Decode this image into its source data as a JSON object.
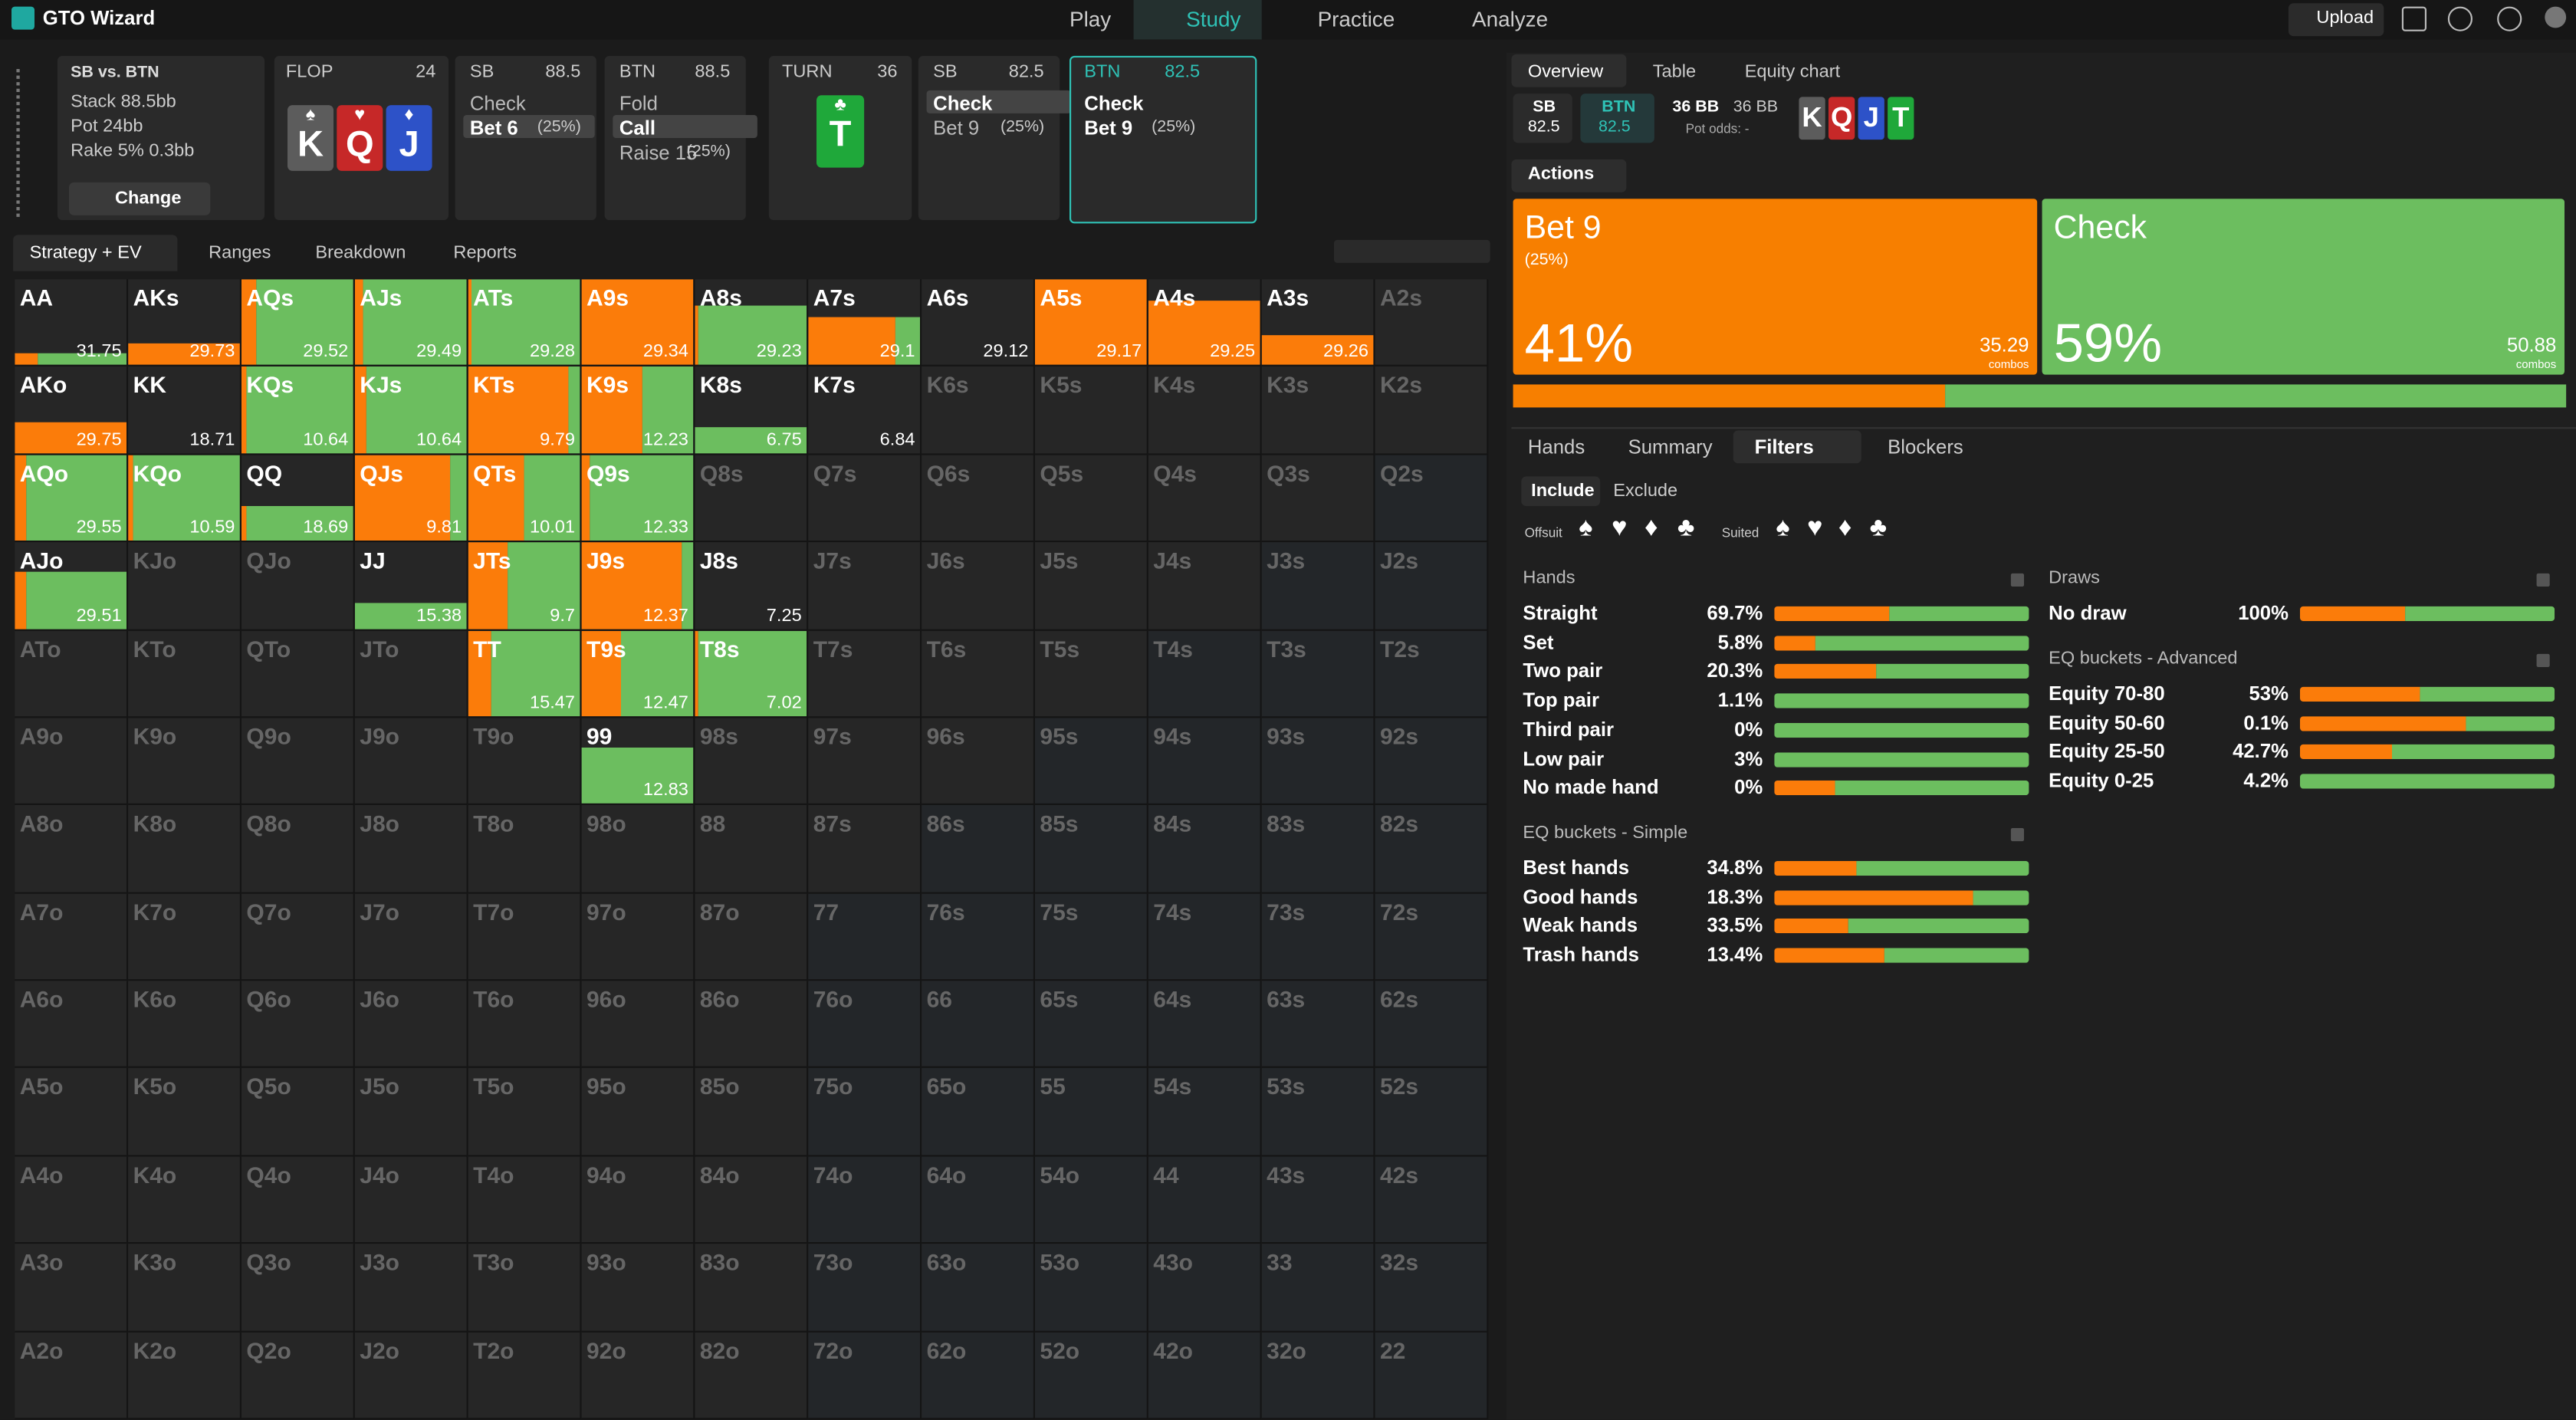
{
  "topbar": {
    "brand": "GTO Wizard",
    "nav": [
      "Play",
      "Study",
      "Practice",
      "Analyze"
    ],
    "upload": "Upload"
  },
  "info": {
    "title": "SB vs. BTN",
    "lines": [
      "Stack 88.5bb",
      "Pot 24bb",
      "Rake 5% 0.3bb"
    ],
    "button": "Change"
  },
  "flop": {
    "label": "FLOP",
    "pot": "24",
    "cards": [
      {
        "rank": "K",
        "suit": "♠"
      },
      {
        "rank": "Q",
        "suit": "♥"
      },
      {
        "rank": "J",
        "suit": "♦"
      }
    ]
  },
  "turn": {
    "label": "TURN",
    "pot": "36",
    "card": {
      "rank": "T",
      "suit": "♣"
    }
  },
  "actions": [
    {
      "player": "SB",
      "stack": "88.5",
      "options": [
        "Check",
        "Bet 6"
      ],
      "sizes": [
        "",
        "(25%)"
      ]
    },
    {
      "player": "BTN",
      "stack": "88.5",
      "options": [
        "Fold",
        "Call",
        "Raise 15"
      ],
      "sizes": [
        "",
        "",
        "(25%)"
      ]
    },
    {
      "player": "SB",
      "stack": "82.5",
      "options": [
        "Check",
        "Bet 9"
      ],
      "sizes": [
        "",
        "(25%)"
      ]
    },
    {
      "player": "BTN",
      "stack": "82.5",
      "options": [
        "Check",
        "Bet 9"
      ],
      "sizes": [
        "",
        "(25%)"
      ]
    }
  ],
  "grid_tabs": [
    "Strategy + EV",
    "Ranges",
    "Breakdown",
    "Reports"
  ],
  "grid": {
    "rows": [
      [
        "AA",
        "AKs",
        "AQs",
        "AJs",
        "ATs",
        "A9s",
        "A8s",
        "A7s",
        "A6s",
        "A5s",
        "A4s",
        "A3s",
        "A2s"
      ],
      [
        "AKo",
        "KK",
        "KQs",
        "KJs",
        "KTs",
        "K9s",
        "K8s",
        "K7s",
        "K6s",
        "K5s",
        "K4s",
        "K3s",
        "K2s"
      ],
      [
        "AQo",
        "KQo",
        "QQ",
        "QJs",
        "QTs",
        "Q9s",
        "Q8s",
        "Q7s",
        "Q6s",
        "Q5s",
        "Q4s",
        "Q3s",
        "Q2s"
      ],
      [
        "AJo",
        "KJo",
        "QJo",
        "JJ",
        "JTs",
        "J9s",
        "J8s",
        "J7s",
        "J6s",
        "J5s",
        "J4s",
        "J3s",
        "J2s"
      ],
      [
        "ATo",
        "KTo",
        "QTo",
        "JTo",
        "TT",
        "T9s",
        "T8s",
        "T7s",
        "T6s",
        "T5s",
        "T4s",
        "T3s",
        "T2s"
      ],
      [
        "A9o",
        "K9o",
        "Q9o",
        "J9o",
        "T9o",
        "99",
        "98s",
        "97s",
        "96s",
        "95s",
        "94s",
        "93s",
        "92s"
      ],
      [
        "A8o",
        "K8o",
        "Q8o",
        "J8o",
        "T8o",
        "98o",
        "88",
        "87s",
        "86s",
        "85s",
        "84s",
        "83s",
        "82s"
      ],
      [
        "A7o",
        "K7o",
        "Q7o",
        "J7o",
        "T7o",
        "97o",
        "87o",
        "77",
        "76s",
        "75s",
        "74s",
        "73s",
        "72s"
      ],
      [
        "A6o",
        "K6o",
        "Q6o",
        "J6o",
        "T6o",
        "96o",
        "86o",
        "76o",
        "66",
        "65s",
        "64s",
        "63s",
        "62s"
      ],
      [
        "A5o",
        "K5o",
        "Q5o",
        "J5o",
        "T5o",
        "95o",
        "85o",
        "75o",
        "65o",
        "55",
        "54s",
        "53s",
        "52s"
      ],
      [
        "A4o",
        "K4o",
        "Q4o",
        "J4o",
        "T4o",
        "94o",
        "84o",
        "74o",
        "64o",
        "54o",
        "44",
        "43s",
        "42s"
      ],
      [
        "A3o",
        "K3o",
        "Q3o",
        "J3o",
        "T3o",
        "93o",
        "83o",
        "73o",
        "63o",
        "53o",
        "43o",
        "33",
        "32s"
      ],
      [
        "A2o",
        "K2o",
        "Q2o",
        "J2o",
        "T2o",
        "92o",
        "82o",
        "72o",
        "62o",
        "52o",
        "42o",
        "32o",
        "22"
      ]
    ],
    "active": {
      "AA": {
        "ev": 31.75,
        "bet": 20,
        "weight": 14
      },
      "AKs": {
        "ev": 29.73,
        "bet": 100,
        "weight": 25
      },
      "AQs": {
        "ev": 29.52,
        "bet": 13,
        "weight": 100
      },
      "AJs": {
        "ev": 29.49,
        "bet": 8,
        "weight": 100
      },
      "ATs": {
        "ev": 29.28,
        "bet": 3,
        "weight": 100
      },
      "A9s": {
        "ev": 29.34,
        "bet": 100,
        "weight": 100
      },
      "A8s": {
        "ev": 29.23,
        "bet": 3,
        "weight": 70
      },
      "A7s": {
        "ev": 29.1,
        "bet": 78,
        "weight": 56
      },
      "A6s": {
        "ev": 29.12,
        "bet": 0,
        "weight": 0
      },
      "A5s": {
        "ev": 29.17,
        "bet": 100,
        "weight": 100
      },
      "A4s": {
        "ev": 29.25,
        "bet": 100,
        "weight": 75
      },
      "A3s": {
        "ev": 29.26,
        "bet": 100,
        "weight": 35
      },
      "AKo": {
        "ev": 29.75,
        "bet": 100,
        "weight": 35
      },
      "KK": {
        "ev": 18.71,
        "bet": 0,
        "weight": 0
      },
      "KQs": {
        "ev": 10.64,
        "bet": 5,
        "weight": 100
      },
      "KJs": {
        "ev": 10.64,
        "bet": 10,
        "weight": 100
      },
      "KTs": {
        "ev": 9.79,
        "bet": 90,
        "weight": 100
      },
      "K9s": {
        "ev": 12.23,
        "bet": 55,
        "weight": 100
      },
      "K8s": {
        "ev": 6.75,
        "bet": 0,
        "weight": 30
      },
      "K7s": {
        "ev": 6.84,
        "bet": 0,
        "weight": 0
      },
      "AQo": {
        "ev": 29.55,
        "bet": 10,
        "weight": 100
      },
      "KQo": {
        "ev": 10.59,
        "bet": 5,
        "weight": 100
      },
      "QQ": {
        "ev": 18.69,
        "bet": 5,
        "weight": 40
      },
      "QJs": {
        "ev": 9.81,
        "bet": 85,
        "weight": 100
      },
      "QTs": {
        "ev": 10.01,
        "bet": 50,
        "weight": 100
      },
      "Q9s": {
        "ev": 12.33,
        "bet": 8,
        "weight": 100
      },
      "AJo": {
        "ev": 29.51,
        "bet": 10,
        "weight": 65
      },
      "JJ": {
        "ev": 15.38,
        "bet": 0,
        "weight": 30
      },
      "JTs": {
        "ev": 9.7,
        "bet": 35,
        "weight": 100
      },
      "J9s": {
        "ev": 12.37,
        "bet": 90,
        "weight": 100
      },
      "J8s": {
        "ev": 7.25,
        "bet": 0,
        "weight": 0
      },
      "TT": {
        "ev": 15.47,
        "bet": 20,
        "weight": 100
      },
      "T9s": {
        "ev": 12.47,
        "bet": 35,
        "weight": 100
      },
      "T8s": {
        "ev": 7.02,
        "bet": 3,
        "weight": 100
      },
      "99": {
        "ev": 12.83,
        "bet": 0,
        "weight": 65
      }
    }
  },
  "right_tabs": [
    "Overview",
    "Table",
    "Equity chart"
  ],
  "stacks": [
    {
      "player": "SB",
      "stack": "82.5"
    },
    {
      "player": "BTN",
      "stack": "82.5"
    }
  ],
  "pot": {
    "a": "36 BB",
    "b": "36 BB",
    "odds": "Pot odds: -"
  },
  "board": [
    "K",
    "Q",
    "J",
    "T"
  ],
  "actions_menu": "Actions",
  "overview": [
    {
      "name": "Bet 9",
      "size": "(25%)",
      "frequency": {
        "value": 41,
        "label": "41%"
      },
      "combos": "35.29",
      "unit": "combos"
    },
    {
      "name": "Check",
      "size": "",
      "frequency": {
        "value": 59,
        "label": "59%"
      },
      "combos": "50.88",
      "unit": "combos"
    }
  ],
  "lower_tabs": [
    "Hands",
    "Summary",
    "Filters",
    "Blockers"
  ],
  "filter_modes": [
    "Include",
    "Exclude"
  ],
  "suit_filters": {
    "offsuit": "Offsuit",
    "suited": "Suited",
    "suits": [
      "♠",
      "♥",
      "♦",
      "♣"
    ]
  },
  "filters": {
    "hands": {
      "title": "Hands",
      "items": [
        {
          "name": "Straight",
          "pct": "69.7%",
          "bet": 45
        },
        {
          "name": "Set",
          "pct": "5.8%",
          "bet": 16
        },
        {
          "name": "Two pair",
          "pct": "20.3%",
          "bet": 40
        },
        {
          "name": "Top pair",
          "pct": "1.1%",
          "bet": 0
        },
        {
          "name": "Third pair",
          "pct": "0%",
          "bet": 0
        },
        {
          "name": "Low pair",
          "pct": "3%",
          "bet": 0
        },
        {
          "name": "No made hand",
          "pct": "0%",
          "bet": 24
        }
      ]
    },
    "eq_simple": {
      "title": "EQ buckets - Simple",
      "items": [
        {
          "name": "Best hands",
          "pct": "34.8%",
          "bet": 32
        },
        {
          "name": "Good hands",
          "pct": "18.3%",
          "bet": 78
        },
        {
          "name": "Weak hands",
          "pct": "33.5%",
          "bet": 29
        },
        {
          "name": "Trash hands",
          "pct": "13.4%",
          "bet": 43
        }
      ]
    },
    "draws": {
      "title": "Draws",
      "items": [
        {
          "name": "No draw",
          "pct": "100%",
          "bet": 41
        }
      ]
    },
    "eq_advanced": {
      "title": "EQ buckets - Advanced",
      "items": [
        {
          "name": "Equity 70-80",
          "pct": "53%",
          "bet": 47
        },
        {
          "name": "Equity 50-60",
          "pct": "0.1%",
          "bet": 65
        },
        {
          "name": "Equity 25-50",
          "pct": "42.7%",
          "bet": 36
        },
        {
          "name": "Equity 0-25",
          "pct": "4.2%",
          "bet": 0
        }
      ]
    }
  }
}
